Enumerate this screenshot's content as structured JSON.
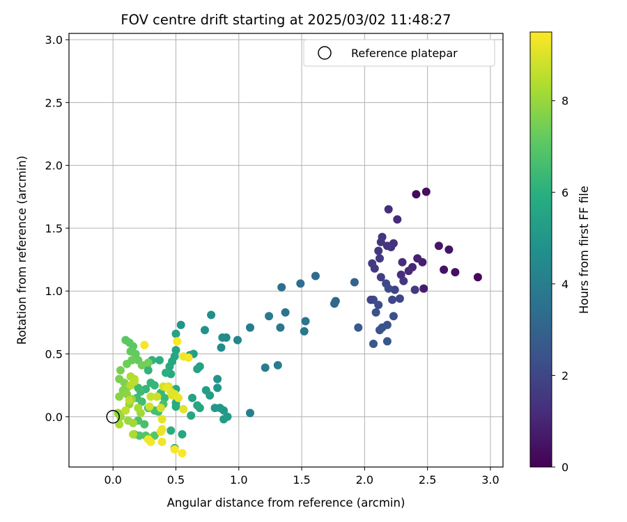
{
  "chart_data": {
    "type": "scatter",
    "title": "FOV centre drift starting at 2025/03/02 11:48:27",
    "xlabel": "Angular distance from reference (arcmin)",
    "ylabel": "Rotation from reference (arcmin)",
    "xlim": [
      -0.35,
      3.1
    ],
    "ylim": [
      -0.4,
      3.05
    ],
    "xticks": [
      "0.0",
      "0.5",
      "1.0",
      "1.5",
      "2.0",
      "2.5",
      "3.0"
    ],
    "yticks": [
      "0.0",
      "0.5",
      "1.0",
      "1.5",
      "2.0",
      "2.5",
      "3.0"
    ],
    "grid": true,
    "legend": {
      "label": "Reference platepar",
      "location": "upper right",
      "marker": "hollow circle at (0, 0)"
    },
    "colorbar": {
      "label": "Hours from first FF file",
      "range": [
        0,
        9.5
      ],
      "ticks": [
        "0",
        "2",
        "4",
        "6",
        "8"
      ],
      "colormap": "viridis"
    },
    "reference_point": {
      "x": 0.0,
      "y": 0.0
    },
    "series": [
      {
        "points": [
          [
            2.41,
            1.77,
            0.3
          ],
          [
            2.49,
            1.79,
            0.35
          ],
          [
            2.9,
            1.11,
            0.2
          ],
          [
            2.72,
            1.15,
            0.4
          ],
          [
            2.67,
            1.33,
            0.5
          ],
          [
            2.63,
            1.17,
            0.45
          ],
          [
            2.59,
            1.36,
            0.6
          ],
          [
            2.47,
            1.02,
            0.7
          ],
          [
            2.46,
            1.23,
            0.8
          ],
          [
            2.42,
            1.26,
            0.9
          ],
          [
            2.38,
            1.19,
            1.0
          ],
          [
            2.35,
            1.16,
            1.1
          ],
          [
            2.3,
            1.23,
            1.2
          ],
          [
            2.29,
            1.13,
            1.25
          ],
          [
            2.26,
            1.57,
            1.1
          ],
          [
            2.19,
            1.65,
            1.2
          ],
          [
            2.23,
            1.38,
            1.3
          ],
          [
            2.21,
            1.35,
            1.35
          ],
          [
            2.18,
            1.36,
            1.4
          ],
          [
            2.14,
            1.43,
            1.45
          ],
          [
            2.13,
            1.39,
            1.5
          ],
          [
            2.11,
            1.32,
            1.55
          ],
          [
            2.12,
            1.26,
            1.6
          ],
          [
            2.08,
            1.18,
            1.65
          ],
          [
            2.06,
            1.22,
            1.7
          ],
          [
            2.13,
            1.11,
            1.8
          ],
          [
            2.24,
            1.01,
            1.9
          ],
          [
            2.28,
            0.94,
            2.0
          ],
          [
            2.22,
            0.93,
            2.05
          ],
          [
            2.17,
            1.06,
            2.1
          ],
          [
            2.19,
            1.02,
            2.15
          ],
          [
            2.11,
            0.89,
            2.2
          ],
          [
            2.07,
            0.93,
            2.25
          ],
          [
            2.09,
            0.83,
            2.3
          ],
          [
            2.23,
            0.8,
            2.35
          ],
          [
            2.18,
            0.73,
            2.4
          ],
          [
            2.14,
            0.71,
            2.45
          ],
          [
            2.12,
            0.69,
            2.5
          ],
          [
            2.07,
            0.58,
            2.55
          ],
          [
            2.18,
            0.6,
            2.6
          ],
          [
            1.95,
            0.71,
            2.7
          ],
          [
            2.31,
            1.08,
            1.5
          ],
          [
            2.4,
            1.01,
            1.6
          ],
          [
            2.05,
            0.93,
            1.9
          ],
          [
            1.92,
            1.07,
            3.0
          ],
          [
            1.77,
            0.92,
            3.1
          ],
          [
            1.76,
            0.9,
            3.2
          ],
          [
            1.61,
            1.12,
            3.3
          ],
          [
            1.49,
            1.06,
            3.4
          ],
          [
            1.34,
            1.03,
            3.5
          ],
          [
            1.37,
            0.83,
            3.6
          ],
          [
            1.53,
            0.76,
            3.7
          ],
          [
            1.52,
            0.68,
            3.75
          ],
          [
            1.33,
            0.71,
            3.8
          ],
          [
            1.24,
            0.8,
            3.85
          ],
          [
            1.09,
            0.71,
            3.9
          ],
          [
            1.31,
            0.41,
            3.95
          ],
          [
            1.21,
            0.39,
            4.0
          ],
          [
            1.09,
            0.03,
            4.05
          ],
          [
            0.99,
            0.61,
            4.3
          ],
          [
            0.9,
            0.63,
            4.5
          ],
          [
            0.87,
            0.63,
            4.55
          ],
          [
            0.86,
            0.55,
            4.6
          ],
          [
            0.78,
            0.81,
            4.7
          ],
          [
            0.73,
            0.69,
            4.8
          ],
          [
            0.54,
            0.73,
            4.9
          ],
          [
            0.83,
            0.3,
            4.9
          ],
          [
            0.83,
            0.23,
            5.0
          ],
          [
            0.85,
            0.07,
            5.0
          ],
          [
            0.81,
            0.07,
            5.05
          ],
          [
            0.88,
            0.05,
            5.1
          ],
          [
            0.91,
            0.0,
            5.1
          ],
          [
            0.88,
            -0.02,
            5.15
          ],
          [
            0.74,
            0.21,
            5.2
          ],
          [
            0.77,
            0.17,
            5.25
          ],
          [
            0.64,
            0.5,
            5.3
          ],
          [
            0.61,
            0.49,
            5.35
          ],
          [
            0.69,
            0.4,
            5.4
          ],
          [
            0.67,
            0.38,
            5.45
          ],
          [
            0.63,
            0.15,
            5.5
          ],
          [
            0.67,
            0.09,
            5.55
          ],
          [
            0.69,
            0.07,
            5.6
          ],
          [
            0.62,
            0.01,
            5.6
          ],
          [
            0.55,
            -0.14,
            5.6
          ],
          [
            0.5,
            0.66,
            5.5
          ],
          [
            0.5,
            0.53,
            5.55
          ],
          [
            0.49,
            0.48,
            5.6
          ],
          [
            0.47,
            0.44,
            5.65
          ],
          [
            0.45,
            0.4,
            5.7
          ],
          [
            0.46,
            0.34,
            5.75
          ],
          [
            0.5,
            0.22,
            5.8
          ],
          [
            0.5,
            0.11,
            5.85
          ],
          [
            0.5,
            0.08,
            5.9
          ],
          [
            0.46,
            -0.11,
            5.9
          ],
          [
            0.49,
            -0.25,
            5.95
          ],
          [
            0.42,
            0.35,
            6.0
          ],
          [
            0.37,
            0.45,
            6.0
          ],
          [
            0.31,
            0.45,
            6.05
          ],
          [
            0.27,
            0.41,
            6.1
          ],
          [
            0.28,
            0.37,
            6.15
          ],
          [
            0.3,
            0.27,
            6.2
          ],
          [
            0.33,
            0.25,
            6.25
          ],
          [
            0.26,
            0.22,
            6.3
          ],
          [
            0.38,
            0.19,
            6.3
          ],
          [
            0.41,
            0.15,
            6.35
          ],
          [
            0.2,
            0.23,
            6.4
          ],
          [
            0.22,
            0.2,
            6.45
          ],
          [
            0.19,
            0.15,
            6.5
          ],
          [
            0.23,
            0.12,
            6.55
          ],
          [
            0.28,
            0.07,
            6.6
          ],
          [
            0.33,
            0.05,
            6.6
          ],
          [
            0.36,
            0.04,
            6.65
          ],
          [
            0.4,
            0.1,
            6.7
          ],
          [
            0.25,
            -0.06,
            6.7
          ],
          [
            0.2,
            -0.03,
            6.75
          ],
          [
            0.17,
            -0.14,
            6.8
          ],
          [
            0.21,
            -0.15,
            6.85
          ],
          [
            0.26,
            -0.15,
            6.9
          ],
          [
            0.33,
            -0.15,
            6.95
          ],
          [
            0.3,
            -0.17,
            7.0
          ],
          [
            0.1,
            0.61,
            7.0
          ],
          [
            0.13,
            0.59,
            7.05
          ],
          [
            0.16,
            0.56,
            7.1
          ],
          [
            0.14,
            0.52,
            7.15
          ],
          [
            0.18,
            0.5,
            7.2
          ],
          [
            0.2,
            0.45,
            7.25
          ],
          [
            0.15,
            0.45,
            7.3
          ],
          [
            0.11,
            0.42,
            7.35
          ],
          [
            0.23,
            0.41,
            7.4
          ],
          [
            0.28,
            0.43,
            7.45
          ],
          [
            0.06,
            0.37,
            7.5
          ],
          [
            0.05,
            0.3,
            7.55
          ],
          [
            0.09,
            0.27,
            7.6
          ],
          [
            0.12,
            0.24,
            7.65
          ],
          [
            0.08,
            0.21,
            7.7
          ],
          [
            0.05,
            0.16,
            7.75
          ],
          [
            0.11,
            0.18,
            7.8
          ],
          [
            0.15,
            0.14,
            7.85
          ],
          [
            0.13,
            0.1,
            7.9
          ],
          [
            0.04,
            0.03,
            7.95
          ],
          [
            0.06,
            0.0,
            8.0
          ],
          [
            0.12,
            -0.03,
            8.05
          ],
          [
            0.16,
            -0.05,
            8.1
          ],
          [
            0.22,
            0.03,
            8.15
          ],
          [
            0.2,
            0.07,
            8.2
          ],
          [
            0.05,
            -0.06,
            8.25
          ],
          [
            0.16,
            -0.14,
            8.3
          ],
          [
            0.14,
            0.32,
            8.35
          ],
          [
            0.17,
            0.3,
            8.4
          ],
          [
            0.14,
            0.25,
            8.45
          ],
          [
            0.17,
            0.28,
            8.5
          ],
          [
            0.13,
            0.13,
            8.55
          ],
          [
            0.1,
            0.05,
            8.6
          ],
          [
            0.3,
            0.16,
            8.7
          ],
          [
            0.35,
            0.16,
            8.75
          ],
          [
            0.29,
            0.08,
            8.8
          ],
          [
            0.38,
            0.07,
            8.85
          ],
          [
            0.4,
            0.24,
            8.9
          ],
          [
            0.44,
            0.24,
            8.95
          ],
          [
            0.46,
            0.2,
            9.0
          ],
          [
            0.47,
            0.17,
            9.05
          ],
          [
            0.49,
            0.18,
            9.1
          ],
          [
            0.56,
            0.06,
            9.1
          ],
          [
            0.39,
            -0.02,
            9.15
          ],
          [
            0.39,
            -0.1,
            9.2
          ],
          [
            0.38,
            -0.12,
            9.25
          ],
          [
            0.39,
            -0.2,
            9.3
          ],
          [
            0.28,
            -0.18,
            9.35
          ],
          [
            0.3,
            -0.2,
            9.35
          ],
          [
            0.49,
            -0.26,
            9.4
          ],
          [
            0.55,
            -0.29,
            9.45
          ],
          [
            0.25,
            0.57,
            9.4
          ],
          [
            0.51,
            0.6,
            9.45
          ],
          [
            0.56,
            0.48,
            9.3
          ],
          [
            0.6,
            0.47,
            9.35
          ],
          [
            0.43,
            0.23,
            9.25
          ],
          [
            0.52,
            0.15,
            9.2
          ]
        ]
      }
    ]
  }
}
